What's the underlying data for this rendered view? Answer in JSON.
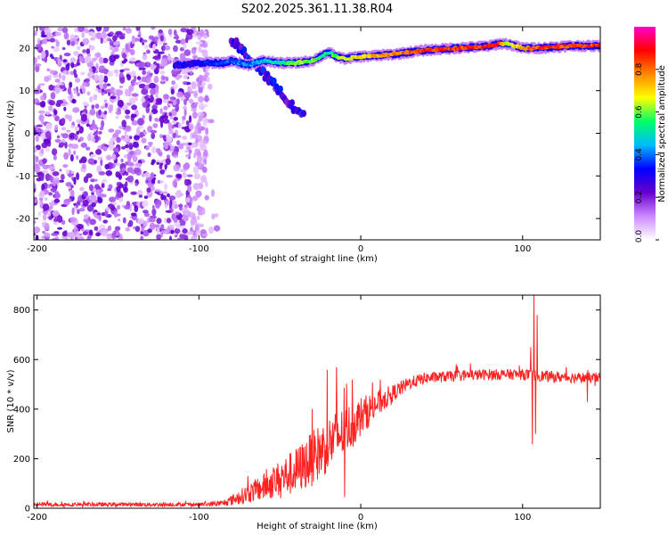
{
  "title": "S202.2025.361.11.38.R04",
  "chart_data": [
    {
      "type": "heatmap",
      "name": "spectrogram",
      "xlabel": "Height of straight line (km)",
      "ylabel": "Frequency (Hz)",
      "xlim": [
        -202,
        148
      ],
      "ylim": [
        -25,
        25
      ],
      "xticks": [
        -200,
        -100,
        0,
        100
      ],
      "yticks": [
        -20,
        -10,
        0,
        10,
        20
      ],
      "colorbar": {
        "label": "Normalized spectral amplitude",
        "range": [
          0,
          1
        ],
        "ticks": [
          0.0,
          0.2,
          0.4,
          0.6,
          0.8
        ],
        "colors": [
          "#ffffff",
          "#cc88ff",
          "#6600cc",
          "#0000ff",
          "#00bbff",
          "#00ff66",
          "#ffff00",
          "#ff8800",
          "#ff0000",
          "#ff00cc"
        ]
      },
      "noise_region": {
        "x_range": [
          -202,
          -95
        ],
        "freq_range": [
          -25,
          25
        ],
        "amplitude": 0.2
      },
      "signal_trace": {
        "x": [
          -115,
          -100,
          -85,
          -80,
          -75,
          -70,
          -60,
          -50,
          -40,
          -30,
          -20,
          -15,
          -10,
          0,
          20,
          40,
          60,
          80,
          85,
          90,
          100,
          110,
          130,
          148
        ],
        "freq": [
          16,
          16.5,
          16.5,
          17,
          16.5,
          16,
          17,
          16.5,
          16.5,
          17,
          19,
          18,
          17.5,
          18,
          18.5,
          19.5,
          20,
          20.5,
          21,
          21,
          20,
          20,
          20.5,
          20.5
        ],
        "amplitude": [
          0.3,
          0.3,
          0.35,
          0.4,
          0.4,
          0.4,
          0.45,
          0.5,
          0.6,
          0.6,
          0.5,
          0.6,
          0.65,
          0.7,
          0.8,
          0.85,
          0.85,
          0.85,
          0.9,
          0.6,
          0.75,
          0.85,
          0.85,
          0.85
        ]
      },
      "falling_branch": {
        "x": [
          -80,
          -70,
          -60,
          -50,
          -45,
          -35
        ],
        "freq": [
          22,
          18,
          14,
          10,
          7,
          4
        ]
      }
    },
    {
      "type": "line",
      "name": "snr",
      "xlabel": "Height of straight line (km)",
      "ylabel": "SNR (10 * v/v)",
      "xlim": [
        -202,
        148
      ],
      "ylim": [
        0,
        860
      ],
      "xticks": [
        -200,
        -100,
        0,
        100
      ],
      "yticks": [
        0,
        200,
        400,
        600,
        800
      ],
      "color": "#ff2222",
      "trend": {
        "x": [
          -202,
          -100,
          -85,
          -75,
          -60,
          -50,
          -40,
          -30,
          -20,
          -10,
          0,
          10,
          20,
          30,
          40,
          60,
          80,
          100,
          120,
          148
        ],
        "snr": [
          15,
          15,
          20,
          45,
          85,
          120,
          150,
          200,
          260,
          310,
          370,
          420,
          465,
          505,
          525,
          535,
          540,
          540,
          530,
          525
        ]
      },
      "noise_amplitude": {
        "x": [
          -202,
          -100,
          -85,
          -75,
          -60,
          -50,
          -40,
          -30,
          -20,
          -10,
          0,
          10,
          20,
          30,
          50,
          148
        ],
        "amp": [
          8,
          8,
          12,
          30,
          55,
          75,
          95,
          110,
          115,
          100,
          80,
          55,
          35,
          25,
          22,
          22
        ]
      },
      "spikes": [
        {
          "x": -15,
          "snr": 570
        },
        {
          "x": -10,
          "snr": 45
        },
        {
          "x": -30,
          "snr": 400
        },
        {
          "x": 20,
          "snr": 470
        },
        {
          "x": 105,
          "snr": 650
        },
        {
          "x": 106,
          "snr": 258
        },
        {
          "x": 107,
          "snr": 860
        },
        {
          "x": 108,
          "snr": 300
        },
        {
          "x": 109,
          "snr": 780
        },
        {
          "x": 140,
          "snr": 430
        }
      ]
    }
  ]
}
